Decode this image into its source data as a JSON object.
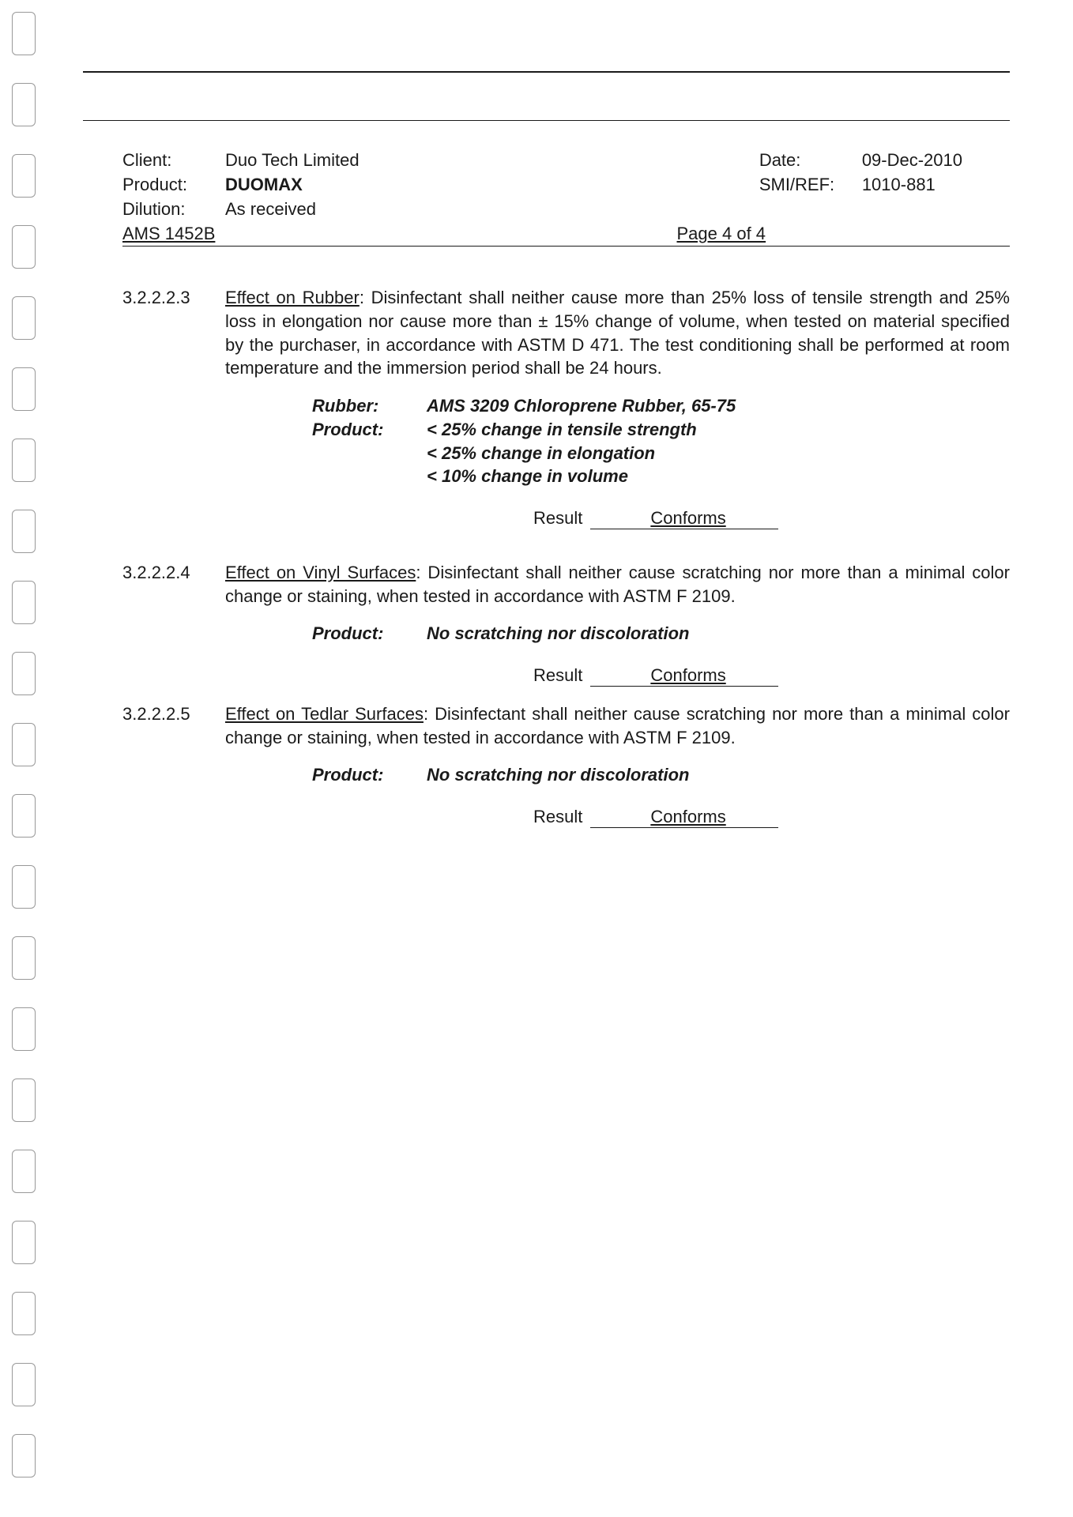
{
  "header": {
    "client_label": "Client:",
    "client_value": "Duo Tech Limited",
    "product_label": "Product:",
    "product_value": "DUOMAX",
    "dilution_label": "Dilution:",
    "dilution_value": "As received",
    "date_label": "Date:",
    "date_value": "09-Dec-2010",
    "ref_label": "SMI/REF:",
    "ref_value": "1010-881",
    "ams": "AMS 1452B",
    "page": "Page 4 of 4"
  },
  "s1": {
    "num": "3.2.2.2.3",
    "title": "Effect on Rubber",
    "body": ":  Disinfectant shall neither cause more than 25% loss of tensile strength and 25% loss in elongation nor cause more than ± 15% change of volume, when tested on material specified by the purchaser, in accordance with ASTM D 471.  The test conditioning shall be performed at room temperature and the immersion period shall be 24 hours.",
    "spec": {
      "rubber_label": "Rubber:",
      "rubber_value": "AMS 3209 Chloroprene Rubber, 65-75",
      "product_label": "Product:",
      "line1": "< 25% change in tensile strength",
      "line2": "< 25% change in elongation",
      "line3": "< 10% change in volume"
    },
    "result_label": "Result",
    "result_value": "Conforms"
  },
  "s2": {
    "num": "3.2.2.2.4",
    "title": "Effect on Vinyl Surfaces",
    "body": ":  Disinfectant shall neither cause scratching nor more than a minimal color change or staining, when tested in accordance with ASTM F 2109.",
    "spec": {
      "product_label": "Product:",
      "line1": "No scratching nor discoloration"
    },
    "result_label": "Result",
    "result_value": "Conforms"
  },
  "s3": {
    "num": "3.2.2.2.5",
    "title": "Effect on Tedlar Surfaces",
    "body": ":  Disinfectant shall neither cause scratching nor more than a minimal color change or staining, when tested in accordance with ASTM F 2109.",
    "spec": {
      "product_label": "Product:",
      "line1": "No scratching nor discoloration"
    },
    "result_label": "Result",
    "result_value": "Conforms"
  },
  "punch_positions": [
    15,
    105,
    195,
    285,
    375,
    465,
    555,
    645,
    735,
    825,
    915,
    1005,
    1095,
    1185,
    1275,
    1365,
    1455,
    1545,
    1635,
    1725,
    1815
  ]
}
